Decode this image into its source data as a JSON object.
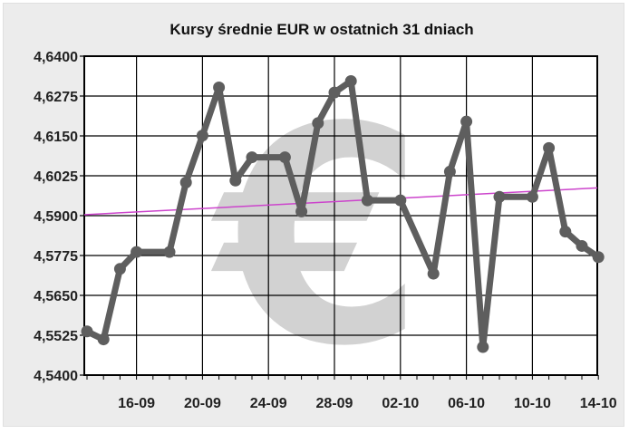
{
  "chart_data": {
    "type": "line",
    "title": "Kursy średnie EUR w ostatnich 31 dniach",
    "xlabel": "",
    "ylabel": "",
    "ylim": [
      4.54,
      4.64
    ],
    "yticks": [
      "4,6400",
      "4,6275",
      "4,6150",
      "4,6025",
      "4,5900",
      "4,5775",
      "4,5650",
      "4,5525",
      "4,5400"
    ],
    "x_tick_labels": [
      "16-09",
      "20-09",
      "24-09",
      "28-09",
      "02-10",
      "06-10",
      "10-10",
      "14-10"
    ],
    "grid": true,
    "x": [
      "13-09",
      "14-09",
      "15-09",
      "16-09",
      "17-09",
      "18-09",
      "19-09",
      "20-09",
      "21-09",
      "22-09",
      "23-09",
      "24-09",
      "25-09",
      "26-09",
      "27-09",
      "28-09",
      "29-09",
      "30-09",
      "01-10",
      "02-10",
      "03-10",
      "04-10",
      "05-10",
      "06-10",
      "07-10",
      "08-10",
      "09-10",
      "10-10",
      "11-10",
      "12-10",
      "13-10",
      "14-10"
    ],
    "series": [
      {
        "color": "#5e5e5e",
        "values": [
          4.5537,
          4.5512,
          4.5733,
          4.5786,
          4.5786,
          4.5786,
          4.6004,
          4.6151,
          4.6302,
          4.601,
          4.6083,
          4.6083,
          4.6083,
          4.5913,
          4.619,
          4.6286,
          4.6322,
          4.5948,
          4.5948,
          4.5948,
          null,
          4.5718,
          4.6038,
          4.6195,
          4.5488,
          4.5959,
          4.5959,
          4.5959,
          4.6112,
          4.585,
          4.5805,
          4.577
        ],
        "markers": [
          true,
          true,
          true,
          true,
          false,
          true,
          true,
          true,
          true,
          true,
          true,
          false,
          true,
          true,
          true,
          true,
          true,
          true,
          false,
          true,
          false,
          true,
          true,
          true,
          true,
          true,
          false,
          true,
          true,
          true,
          true,
          true
        ]
      }
    ],
    "trendline": {
      "color": "#cc44cc",
      "start": 4.5903,
      "end": 4.5987
    }
  },
  "watermark": {
    "symbol": "€",
    "color": "#d2d2d2"
  }
}
